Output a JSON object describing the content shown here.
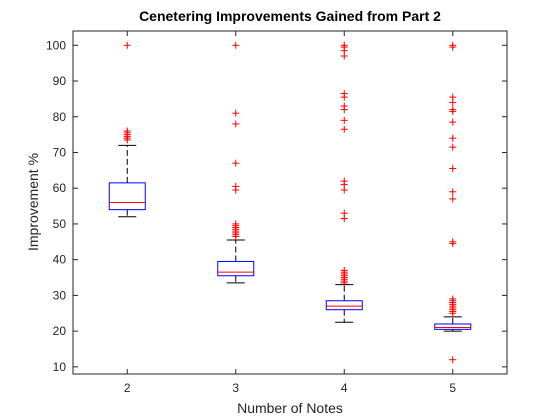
{
  "chart_data": {
    "type": "box",
    "title": "Cenetering Improvements Gained from Part 2",
    "xlabel": "Number of Notes",
    "ylabel": "Improvement %",
    "categories": [
      "2",
      "3",
      "4",
      "5"
    ],
    "ylim": [
      8,
      104
    ],
    "yticks": [
      10,
      20,
      30,
      40,
      50,
      60,
      70,
      80,
      90,
      100
    ],
    "grid": false,
    "colors": {
      "box": "#0000ff",
      "median": "#ff0000",
      "whisker": "#000000",
      "outlier": "#ff0000",
      "axis": "#262626"
    },
    "boxes": [
      {
        "category": "2",
        "whisker_low": 52,
        "q1": 54,
        "median": 56,
        "q3": 61.5,
        "whisker_high": 72,
        "outliers": [
          73.5,
          74,
          74.5,
          75,
          75.5,
          76,
          100
        ]
      },
      {
        "category": "3",
        "whisker_low": 33.5,
        "q1": 35.5,
        "median": 36.5,
        "q3": 39.5,
        "whisker_high": 45.5,
        "outliers": [
          46.5,
          47,
          47.5,
          48,
          48.5,
          49,
          49.5,
          50,
          59.5,
          60.5,
          67,
          78,
          81,
          100
        ]
      },
      {
        "category": "4",
        "whisker_low": 22.5,
        "q1": 26,
        "median": 27,
        "q3": 28.5,
        "whisker_high": 33,
        "outliers": [
          33.5,
          34,
          34.5,
          35,
          35.5,
          36,
          36.5,
          37,
          51.5,
          53,
          59.5,
          61,
          62,
          76.5,
          79,
          82,
          83,
          85.5,
          86.5,
          97,
          98.5,
          99.5,
          100
        ]
      },
      {
        "category": "5",
        "whisker_low": 20,
        "q1": 20.5,
        "median": 21,
        "q3": 22,
        "whisker_high": 24,
        "outliers": [
          12,
          25,
          25.5,
          26,
          26.5,
          27,
          27.5,
          28,
          28.5,
          29,
          44.5,
          45,
          57,
          59,
          65.5,
          71.5,
          74,
          78.5,
          81.5,
          82,
          84,
          85.5,
          99.5,
          100
        ]
      }
    ]
  }
}
